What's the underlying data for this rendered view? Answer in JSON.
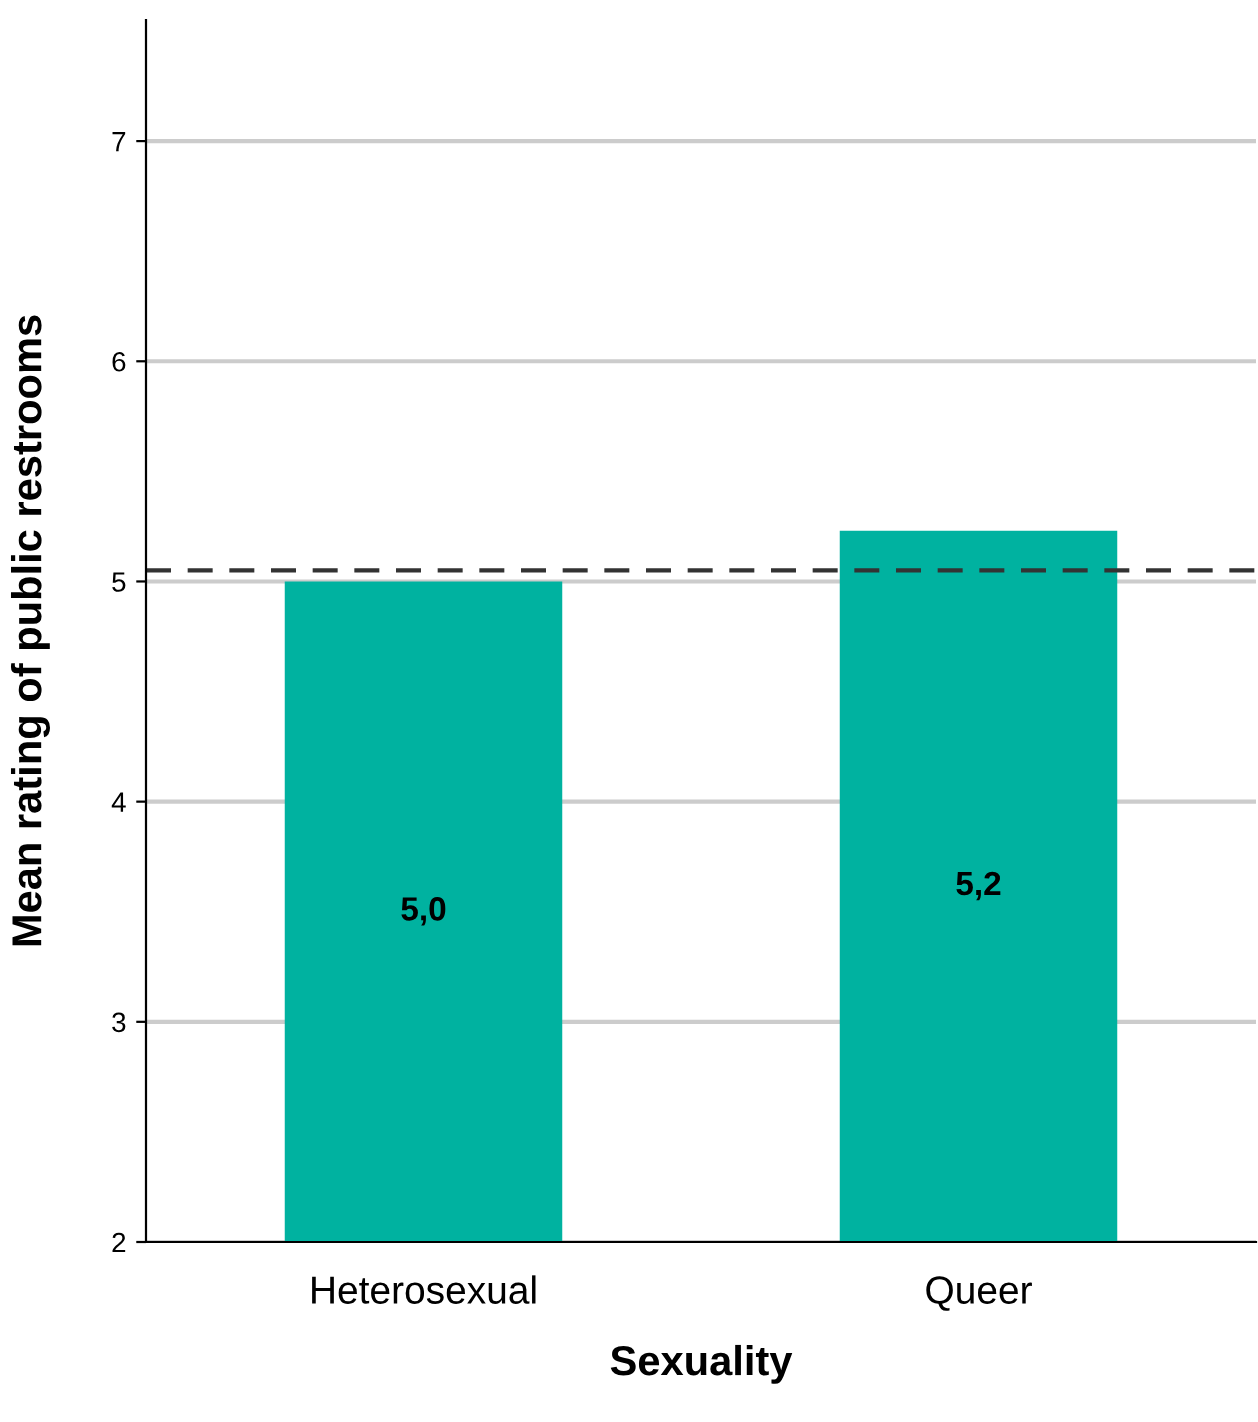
{
  "chart_data": {
    "type": "bar",
    "xlabel": "Sexuality",
    "ylabel": "Mean rating of public restrooms",
    "categories": [
      "Heterosexual",
      "Queer"
    ],
    "values": [
      5.0,
      5.23
    ],
    "value_labels": [
      "5,0",
      "5,2"
    ],
    "color": "#00b2a0",
    "ylim": [
      2,
      7.55
    ],
    "yticks": [
      2,
      3,
      4,
      5,
      6,
      7
    ],
    "grid": "y",
    "ref_lines": [
      {
        "axis": "y",
        "value": 5.05,
        "color": "#333333",
        "line_style": "dashed"
      }
    ]
  }
}
